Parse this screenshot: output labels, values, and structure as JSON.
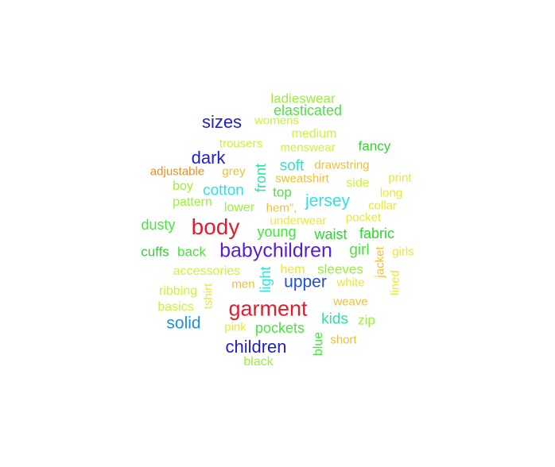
{
  "words": [
    {
      "text": "ladieswear",
      "color": "#9bf03a"
    },
    {
      "text": "elasticated",
      "color": "#48e63c"
    },
    {
      "text": "sizes",
      "color": "#1f1fc8"
    },
    {
      "text": "womens",
      "color": "#c9f53a"
    },
    {
      "text": "medium",
      "color": "#c9f53a"
    },
    {
      "text": "trousers",
      "color": "#c9f53a"
    },
    {
      "text": "menswear",
      "color": "#c9f53a"
    },
    {
      "text": "fancy",
      "color": "#2fd42f"
    },
    {
      "text": "dark",
      "color": "#1f1fc8"
    },
    {
      "text": "front",
      "color": "#33e0a0"
    },
    {
      "text": "soft",
      "color": "#33e0c8"
    },
    {
      "text": "drawstring",
      "color": "#f0c030"
    },
    {
      "text": "adjustable",
      "color": "#e8901e"
    },
    {
      "text": "grey",
      "color": "#f0c030"
    },
    {
      "text": "print",
      "color": "#e8e83a"
    },
    {
      "text": "boy",
      "color": "#9bf03a"
    },
    {
      "text": "sweatshirt",
      "color": "#f0c030"
    },
    {
      "text": "side",
      "color": "#c9f53a"
    },
    {
      "text": "cotton",
      "color": "#33e0e0"
    },
    {
      "text": "top",
      "color": "#48e63c"
    },
    {
      "text": "long",
      "color": "#e8e83a"
    },
    {
      "text": "pattern",
      "color": "#9bf03a"
    },
    {
      "text": "lower",
      "color": "#9bf03a"
    },
    {
      "text": "hem\",",
      "color": "#f0c030"
    },
    {
      "text": "jersey",
      "color": "#33e0e0"
    },
    {
      "text": "collar",
      "color": "#e8e83a"
    },
    {
      "text": "dusty",
      "color": "#48e63c"
    },
    {
      "text": "body",
      "color": "#e01e2e"
    },
    {
      "text": "underwear",
      "color": "#e8e83a"
    },
    {
      "text": "pocket",
      "color": "#e8e83a"
    },
    {
      "text": "young",
      "color": "#48e63c"
    },
    {
      "text": "waist",
      "color": "#2fd42f"
    },
    {
      "text": "fabric",
      "color": "#2fd42f"
    },
    {
      "text": "cuffs",
      "color": "#2fd42f"
    },
    {
      "text": "back",
      "color": "#48e63c"
    },
    {
      "text": "babychildren",
      "color": "#5a1ed2"
    },
    {
      "text": "girl",
      "color": "#48e63c"
    },
    {
      "text": "jacket",
      "color": "#f0c030"
    },
    {
      "text": "girls",
      "color": "#e8e83a"
    },
    {
      "text": "accessories",
      "color": "#c9f53a"
    },
    {
      "text": "light",
      "color": "#33e0d8"
    },
    {
      "text": "hem",
      "color": "#e8e83a"
    },
    {
      "text": "sleeves",
      "color": "#9bf03a"
    },
    {
      "text": "lined",
      "color": "#e8e83a"
    },
    {
      "text": "ribbing",
      "color": "#c9f53a"
    },
    {
      "text": "tshirt",
      "color": "#e8e83a"
    },
    {
      "text": "men",
      "color": "#f0c030"
    },
    {
      "text": "upper",
      "color": "#1f4ee0"
    },
    {
      "text": "white",
      "color": "#e8e83a"
    },
    {
      "text": "basics",
      "color": "#c9f53a"
    },
    {
      "text": "garment",
      "color": "#e01e2e"
    },
    {
      "text": "weave",
      "color": "#f0c030"
    },
    {
      "text": "solid",
      "color": "#1f8ee0"
    },
    {
      "text": "pink",
      "color": "#e8e83a"
    },
    {
      "text": "pockets",
      "color": "#48e63c"
    },
    {
      "text": "kids",
      "color": "#33e0a0"
    },
    {
      "text": "zip",
      "color": "#9bf03a"
    },
    {
      "text": "short",
      "color": "#f0c030"
    },
    {
      "text": "blue",
      "color": "#48e63c"
    },
    {
      "text": "children",
      "color": "#1f1fc8"
    },
    {
      "text": "black",
      "color": "#9bf03a"
    }
  ]
}
